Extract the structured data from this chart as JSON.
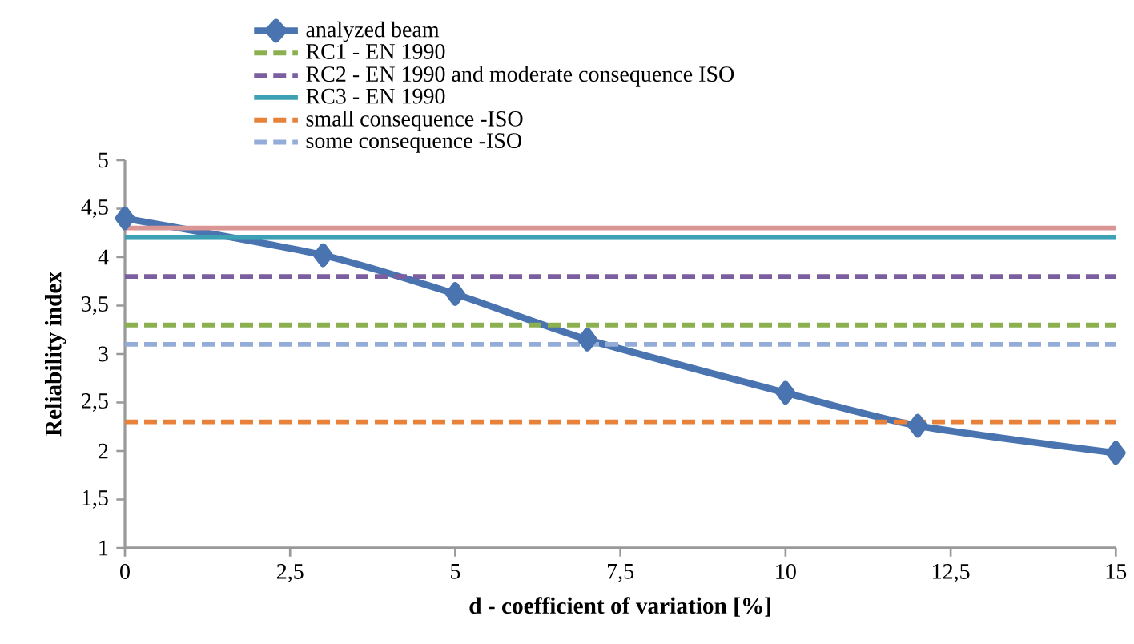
{
  "chart_data": {
    "type": "line",
    "xlabel": "d - coefficient of variation [%]",
    "ylabel": "Reliability index",
    "xlim": [
      0,
      15
    ],
    "ylim": [
      1,
      5
    ],
    "xticks": [
      0,
      {
        "value": 2.5,
        "label": "2,5"
      },
      5,
      {
        "value": 7.5,
        "label": "7,5"
      },
      10,
      {
        "value": 12.5,
        "label": "12,5"
      },
      15
    ],
    "yticks": [
      1,
      {
        "value": 1.5,
        "label": "1,5"
      },
      2,
      {
        "value": 2.5,
        "label": "2,5"
      },
      3,
      {
        "value": 3.5,
        "label": "3,5"
      },
      4,
      {
        "value": 4.5,
        "label": "4,5"
      },
      5
    ],
    "grid": false,
    "legend": "top",
    "series": [
      {
        "name": "analyzed beam",
        "color": "#4a74b0",
        "x": [
          0,
          3,
          5,
          7,
          10,
          12,
          15
        ],
        "values": [
          4.4,
          4.02,
          3.62,
          3.15,
          2.6,
          2.26,
          1.98
        ],
        "marker": "diamond",
        "line_style": "solid"
      },
      {
        "name": "RC1 - EN 1990",
        "color": "#8cb050",
        "x": [
          0,
          15
        ],
        "values": [
          3.3,
          3.3
        ],
        "marker": "none",
        "line_style": "dashed"
      },
      {
        "name": "RC2 - EN 1990 and moderate consequence ISO",
        "color": "#7a5ea0",
        "x": [
          0,
          15
        ],
        "values": [
          3.8,
          3.8
        ],
        "marker": "none",
        "line_style": "dashed"
      },
      {
        "name": "RC3 - EN 1990",
        "color": "#3ea0b4",
        "x": [
          0,
          15
        ],
        "values": [
          4.2,
          4.2
        ],
        "marker": "none",
        "line_style": "solid"
      },
      {
        "name": "small consequence -ISO",
        "color": "#e8823a",
        "x": [
          0,
          15
        ],
        "values": [
          2.3,
          2.3
        ],
        "marker": "none",
        "line_style": "dashed"
      },
      {
        "name": "some consequence -ISO",
        "color": "#94acd8",
        "x": [
          0,
          15
        ],
        "values": [
          3.1,
          3.1
        ],
        "marker": "none",
        "line_style": "dashed"
      },
      {
        "color": "#d99694",
        "x": [
          0,
          15
        ],
        "values": [
          4.3,
          4.3
        ],
        "marker": "none",
        "line_style": "solid"
      }
    ]
  }
}
